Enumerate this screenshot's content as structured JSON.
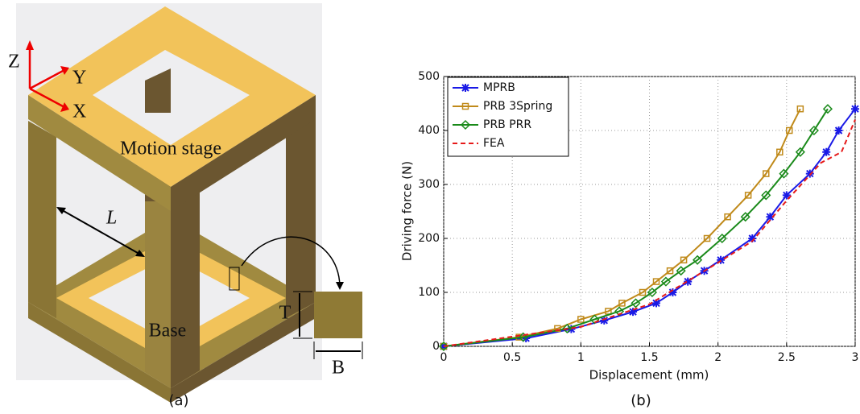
{
  "illustration": {
    "caption": "(a)",
    "axis_labels": [
      "Z",
      "Y",
      "X"
    ],
    "part_labels": [
      "Motion stage",
      "Base"
    ],
    "dimension_labels": [
      "L",
      "T",
      "B"
    ]
  },
  "chart_data": {
    "type": "line",
    "caption": "(b)",
    "x_label": "Displacement (mm)",
    "y_label": "Driving force (N)",
    "xlim": [
      0,
      3
    ],
    "xticks": [
      0,
      0.5,
      1,
      1.5,
      2,
      2.5,
      3
    ],
    "ylim": [
      0,
      500
    ],
    "yticks": [
      0,
      100,
      200,
      300,
      400,
      500
    ],
    "grid": true,
    "legend": "upper-left",
    "series": [
      {
        "name": "MPRB",
        "color": "#1a1ae6",
        "marker": "star",
        "x": [
          0,
          0.6,
          0.93,
          1.17,
          1.38,
          1.55,
          1.67,
          1.78,
          1.9,
          2.02,
          2.25,
          2.38,
          2.5,
          2.67,
          2.79,
          2.88,
          3.0
        ],
        "values": [
          0,
          15,
          32,
          48,
          64,
          80,
          100,
          120,
          140,
          160,
          200,
          240,
          280,
          320,
          360,
          400,
          440
        ]
      },
      {
        "name": "PRB 3Spring",
        "color": "#c08a1a",
        "marker": "square",
        "x": [
          0,
          0.55,
          0.83,
          1.0,
          1.2,
          1.3,
          1.45,
          1.55,
          1.65,
          1.75,
          1.92,
          2.07,
          2.22,
          2.35,
          2.45,
          2.52,
          2.6
        ],
        "values": [
          0,
          17,
          33,
          50,
          65,
          80,
          100,
          120,
          140,
          160,
          200,
          240,
          280,
          320,
          360,
          400,
          440
        ]
      },
      {
        "name": "PRB PRR",
        "color": "#1a8a1a",
        "marker": "diamond",
        "x": [
          0,
          0.58,
          0.9,
          1.1,
          1.28,
          1.4,
          1.52,
          1.62,
          1.73,
          1.85,
          2.03,
          2.2,
          2.35,
          2.48,
          2.6,
          2.7,
          2.8
        ],
        "values": [
          0,
          17,
          33,
          50,
          65,
          80,
          100,
          120,
          140,
          160,
          200,
          240,
          280,
          320,
          360,
          400,
          440
        ]
      },
      {
        "name": "FEA",
        "color": "#e61a1a",
        "marker": "none",
        "dash": true,
        "x": [
          0,
          0.5,
          1,
          1.5,
          2,
          2.25,
          2.5,
          2.75,
          2.9,
          3.0
        ],
        "values": [
          0,
          18,
          36,
          78,
          155,
          195,
          270,
          340,
          360,
          420
        ]
      }
    ]
  }
}
